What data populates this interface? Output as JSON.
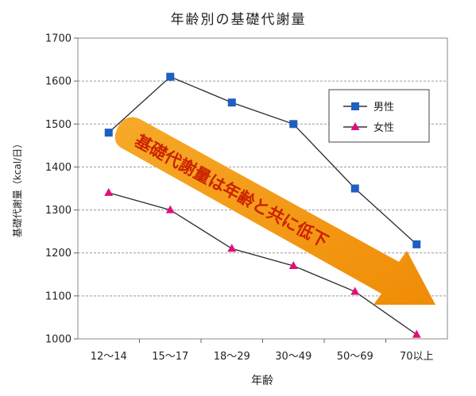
{
  "chart_data": {
    "type": "line",
    "title": "年齢別の基礎代謝量",
    "xlabel": "年齢",
    "ylabel": "基礎代謝量（kcal/日）",
    "categories": [
      "12〜14",
      "15〜17",
      "18〜29",
      "30〜49",
      "50〜69",
      "70以上"
    ],
    "ylim": [
      1000,
      1700
    ],
    "yticks": [
      "1000",
      "1100",
      "1200",
      "1300",
      "1400",
      "1500",
      "1600",
      "1700"
    ],
    "grid": true,
    "legend_position": "top-right",
    "series": [
      {
        "name": "男性",
        "values": [
          1480,
          1610,
          1550,
          1500,
          1350,
          1220
        ],
        "color": "#1f5fbf",
        "marker": "square"
      },
      {
        "name": "女性",
        "values": [
          1340,
          1300,
          1210,
          1170,
          1110,
          1010
        ],
        "color": "#e0107a",
        "marker": "triangle"
      }
    ],
    "annotation": {
      "text": "基礎代謝量は年齢と共に低下",
      "color": "#f39a12",
      "text_color": "#cc2200"
    }
  }
}
